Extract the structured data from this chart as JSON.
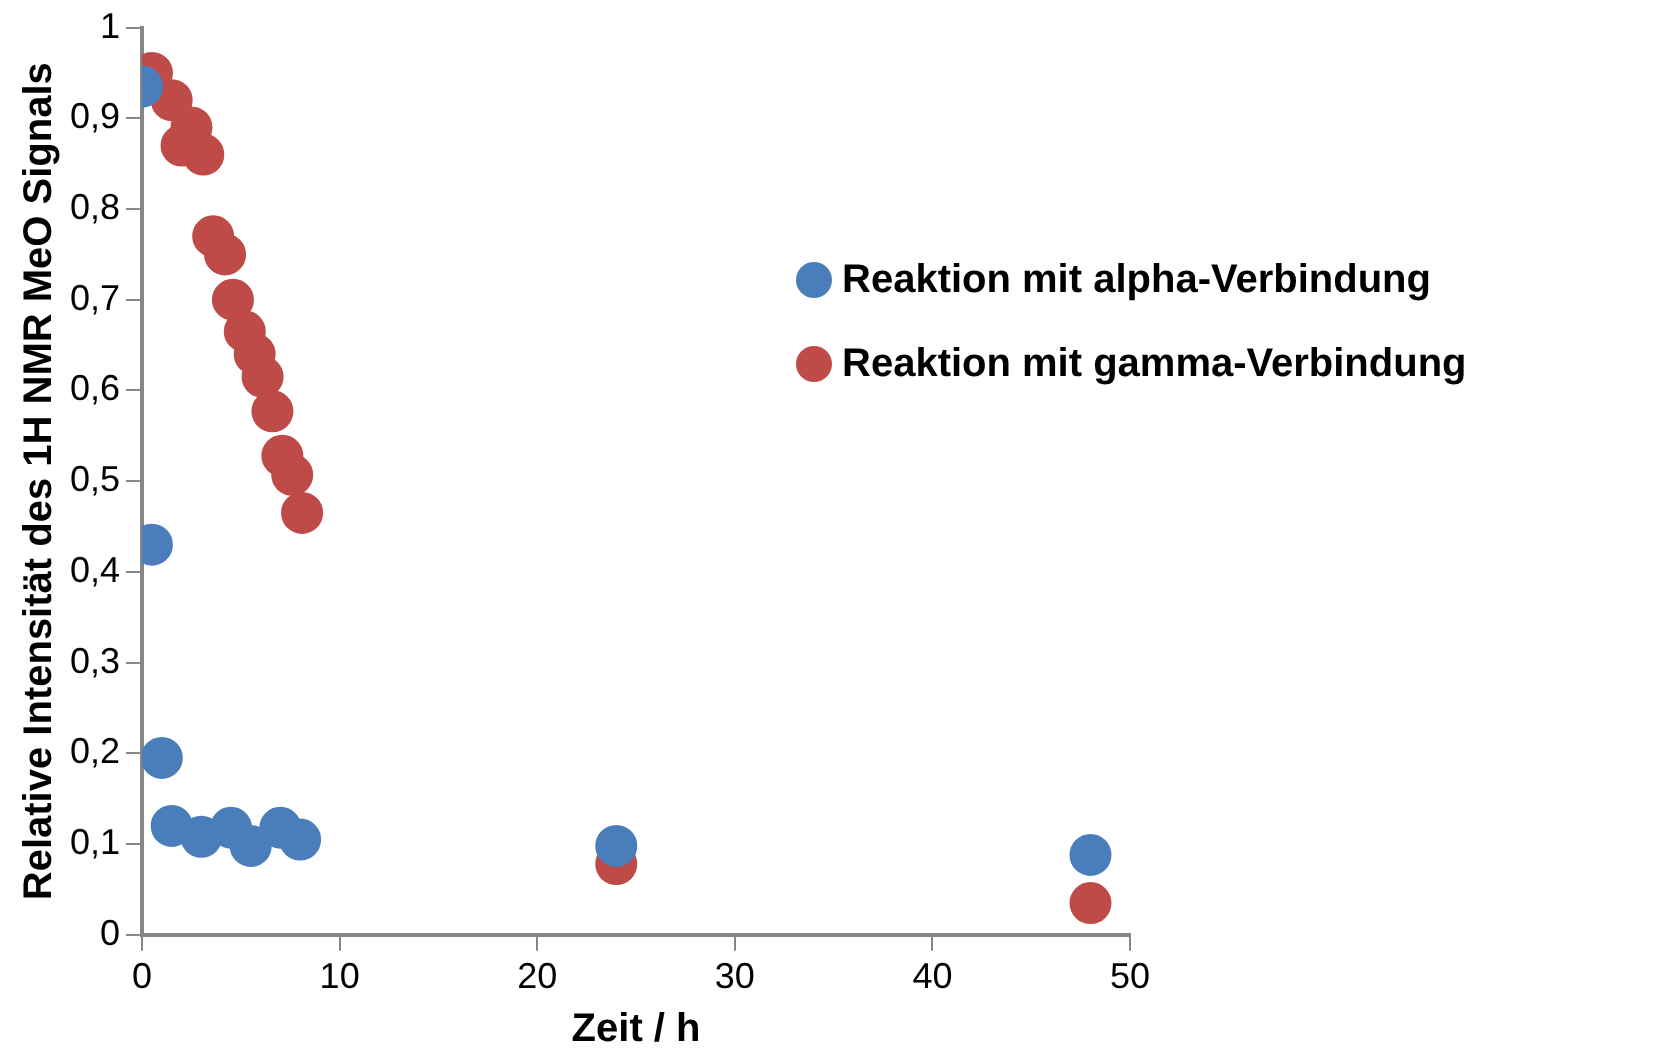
{
  "chart_data": {
    "type": "scatter",
    "xlabel": "Zeit / h",
    "ylabel": "Relative Intensität des 1H NMR MeO Signals",
    "xlim": [
      0,
      50
    ],
    "xticks": [
      0,
      10,
      20,
      30,
      40,
      50
    ],
    "ylim": [
      0,
      1
    ],
    "yticks": [
      {
        "value": 0,
        "label": "0"
      },
      {
        "value": 0.1,
        "label": "0,1"
      },
      {
        "value": 0.2,
        "label": "0,2"
      },
      {
        "value": 0.3,
        "label": "0,3"
      },
      {
        "value": 0.4,
        "label": "0,4"
      },
      {
        "value": 0.5,
        "label": "0,5"
      },
      {
        "value": 0.6,
        "label": "0,6"
      },
      {
        "value": 0.7,
        "label": "0,7"
      },
      {
        "value": 0.8,
        "label": "0,8"
      },
      {
        "value": 0.9,
        "label": "0,9"
      },
      {
        "value": 1,
        "label": "1"
      }
    ],
    "grid": false,
    "legend": "right",
    "marker": "circle",
    "series": [
      {
        "name": "Reaktion mit alpha-Verbindung",
        "color": "#4a7ebb",
        "x": [
          0,
          0.5,
          1,
          1.5,
          3,
          4.5,
          5.5,
          7,
          8,
          24,
          48
        ],
        "values": [
          0.935,
          0.43,
          0.195,
          0.12,
          0.108,
          0.118,
          0.098,
          0.118,
          0.105,
          0.098,
          0.088
        ]
      },
      {
        "name": "Reaktion mit gamma-Verbindung",
        "color": "#be4b48",
        "x": [
          0.5,
          1.5,
          2,
          2.5,
          3.1,
          3.6,
          4.2,
          4.6,
          5.2,
          5.7,
          6.1,
          6.6,
          7.1,
          7.6,
          8.1,
          24,
          48
        ],
        "values": [
          0.95,
          0.92,
          0.87,
          0.89,
          0.86,
          0.77,
          0.75,
          0.7,
          0.665,
          0.64,
          0.615,
          0.577,
          0.528,
          0.507,
          0.465,
          0.078,
          0.035
        ]
      }
    ]
  }
}
